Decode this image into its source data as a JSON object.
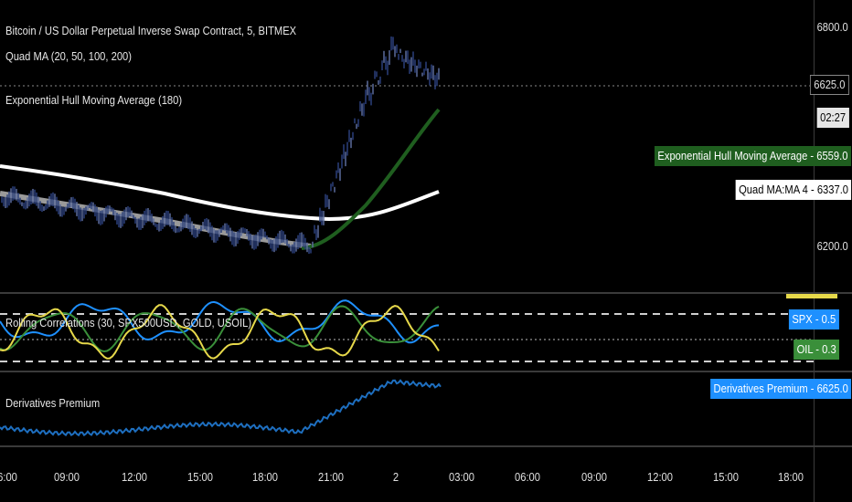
{
  "colors": {
    "background": "#000000",
    "ehma": "#1f5e1f",
    "quad_ma": "#ffffff",
    "quad_ma_grey": "#9a9a9a",
    "price": "#2a3f7a",
    "spx": "#1e90ff",
    "oil": "#3a8f3a",
    "gold": "#e6d84a",
    "premium": "#1e6fc0"
  },
  "main_pane": {
    "title": "Bitcoin / US Dollar Perpetual Inverse Swap Contract, 5, BITMEX",
    "indicator_1": "Quad MA (20, 50, 100, 200)",
    "indicator_2": "Exponential Hull Moving Average (180)",
    "y_ticks": [
      "6800.0",
      "6200.0"
    ],
    "last_price": "6625.0",
    "countdown": "02:27",
    "ehma_label": "Exponential Hull Moving Average - 6559.0",
    "quad_label": "Quad MA:MA 4 - 6337.0"
  },
  "corr_pane": {
    "title": "Rolling Correlations (30, SPX500USD, GOLD, USOIL)",
    "spx_label": "SPX - 0.5",
    "oil_label": "OIL - 0.3"
  },
  "premium_pane": {
    "title": "Derivatives Premium",
    "value_label": "Derivatives Premium - 6625.0"
  },
  "time_axis": {
    "labels": [
      "6:00",
      "09:00",
      "12:00",
      "15:00",
      "18:00",
      "21:00",
      "2",
      "03:00",
      "06:00",
      "09:00",
      "12:00",
      "15:00",
      "18:00"
    ]
  }
}
